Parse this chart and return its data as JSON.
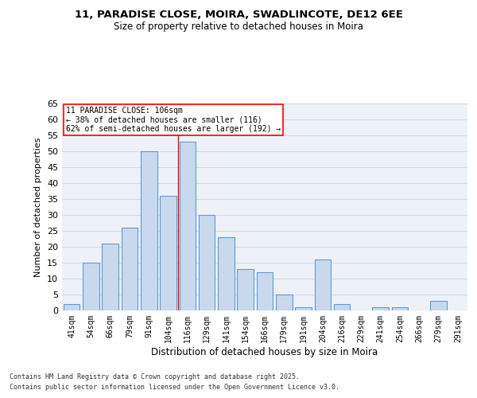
{
  "title": "11, PARADISE CLOSE, MOIRA, SWADLINCOTE, DE12 6EE",
  "subtitle": "Size of property relative to detached houses in Moira",
  "xlabel": "Distribution of detached houses by size in Moira",
  "ylabel": "Number of detached properties",
  "categories": [
    "41sqm",
    "54sqm",
    "66sqm",
    "79sqm",
    "91sqm",
    "104sqm",
    "116sqm",
    "129sqm",
    "141sqm",
    "154sqm",
    "166sqm",
    "179sqm",
    "191sqm",
    "204sqm",
    "216sqm",
    "229sqm",
    "241sqm",
    "254sqm",
    "266sqm",
    "279sqm",
    "291sqm"
  ],
  "values": [
    2,
    15,
    21,
    26,
    50,
    36,
    53,
    30,
    23,
    13,
    12,
    5,
    1,
    16,
    2,
    0,
    1,
    1,
    0,
    3,
    0
  ],
  "bar_color": "#c9d9ed",
  "bar_edge_color": "#5b9bd5",
  "red_line_x": 5.5,
  "annotation_text": "11 PARADISE CLOSE: 106sqm\n← 38% of detached houses are smaller (116)\n62% of semi-detached houses are larger (192) →",
  "annotation_box_color": "white",
  "annotation_box_edge_color": "red",
  "ylim": [
    0,
    65
  ],
  "yticks": [
    0,
    5,
    10,
    15,
    20,
    25,
    30,
    35,
    40,
    45,
    50,
    55,
    60,
    65
  ],
  "grid_color": "#d0d8e8",
  "background_color": "#eef2f8",
  "footer1": "Contains HM Land Registry data © Crown copyright and database right 2025.",
  "footer2": "Contains public sector information licensed under the Open Government Licence v3.0."
}
